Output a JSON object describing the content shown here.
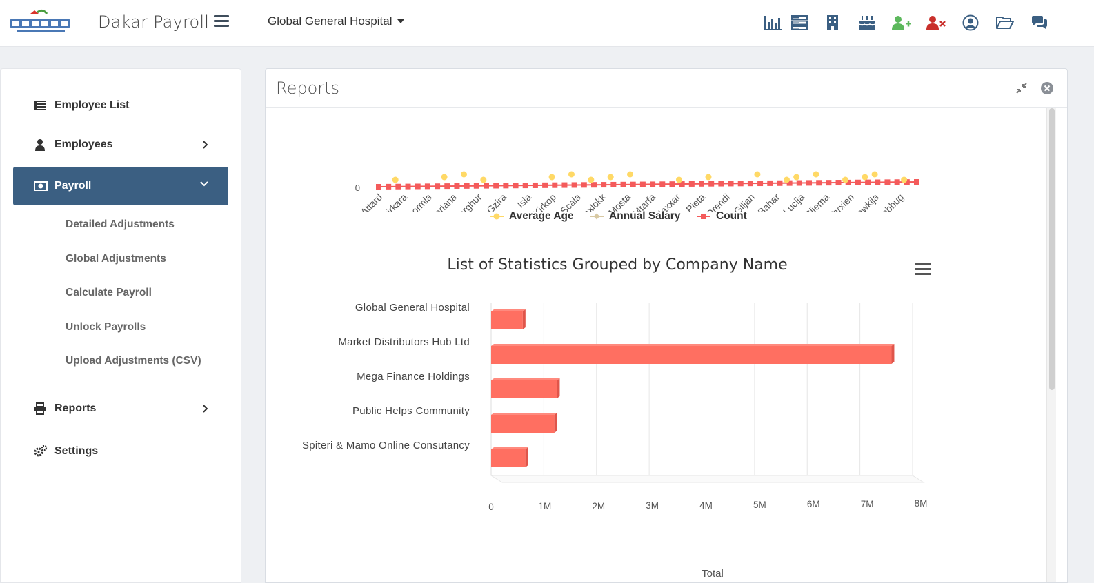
{
  "app": {
    "title": "Dakar Payroll",
    "company": "Global General Hospital",
    "top_icons": [
      "bar-chart-icon",
      "server-icon",
      "building-icon",
      "cake-icon",
      "add-user-icon",
      "remove-user-icon",
      "user-circle-icon",
      "folder-open-icon",
      "comments-icon"
    ],
    "colors": {
      "accent": "#3b5f82",
      "bar": "#ff6f61",
      "add_user": "#5cb85c",
      "remove_user": "#c9302c",
      "icon": "#3b5f82"
    }
  },
  "sidebar": {
    "items": [
      {
        "label": "Employee List",
        "icon": "list-icon"
      },
      {
        "label": "Employees",
        "icon": "user-icon"
      },
      {
        "label": "Payroll",
        "icon": "money-icon"
      },
      {
        "label": "Reports",
        "icon": "print-icon"
      },
      {
        "label": "Settings",
        "icon": "gears-icon"
      }
    ],
    "payroll_sub": [
      "Detailed Adjustments",
      "Global Adjustments",
      "Calculate Payroll",
      "Unlock Payrolls",
      "Upload Adjustments (CSV)"
    ]
  },
  "panel": {
    "title": "Reports"
  },
  "chart_data": [
    {
      "type": "line",
      "categories": [
        "Attard",
        "Birkirkara",
        "Bormla",
        "Floriana",
        "Gharghur",
        "Gzira",
        "Isla",
        "Kirkop",
        "M Scala",
        "Marsaxlokk",
        "Mosta",
        "Mtarfa",
        "Naxxar",
        "Pieta",
        "Qrendi",
        "San Giljan",
        "San Pawl il Bahar",
        "Santa Lucija",
        "Sliema",
        "Tarxien",
        "Xewkija",
        "Zebbug"
      ],
      "series": [
        {
          "name": "Average Age"
        },
        {
          "name": "Annual Salary"
        },
        {
          "name": "Count"
        }
      ],
      "ytick_visible": "0"
    },
    {
      "type": "bar",
      "title": "List of Statistics Grouped by Company Name",
      "categories": [
        "Global General Hospital",
        "Market Distributors Hub Ltd",
        "Mega Finance Holdings",
        "Public Helps Community",
        "Spiteri & Mamo Online Consutancy"
      ],
      "values": [
        600000,
        7600000,
        1250000,
        1200000,
        650000
      ],
      "xlabel": "Total",
      "xticks": [
        "0",
        "1M",
        "2M",
        "3M",
        "4M",
        "5M",
        "6M",
        "7M",
        "8M"
      ],
      "xlim": [
        0,
        8000000
      ]
    }
  ]
}
